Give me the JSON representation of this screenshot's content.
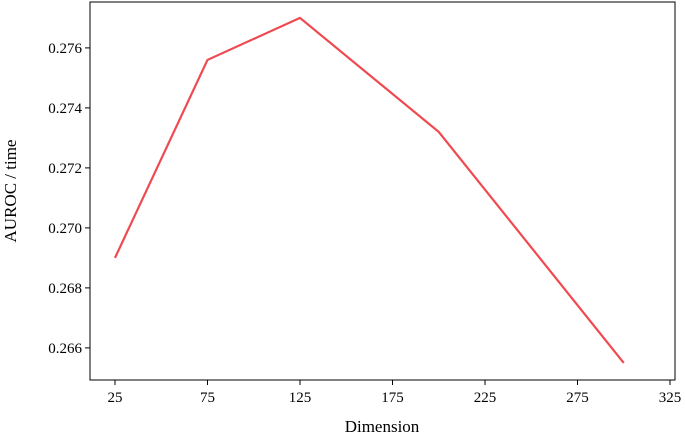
{
  "chart_data": {
    "type": "line",
    "xlabel": "Dimension",
    "ylabel": "AUROC  / time",
    "x": [
      25,
      75,
      125,
      200,
      300
    ],
    "series": [
      {
        "color": "#ef4a50",
        "values": [
          0.269,
          0.2756,
          0.277,
          0.2732,
          0.2655
        ]
      }
    ],
    "xlim": [
      11.5,
      327.7
    ],
    "xticks": [
      25,
      75,
      125,
      175,
      225,
      275,
      325
    ],
    "ylim": [
      0.26493,
      0.27753
    ],
    "yticks": [
      0.266,
      0.268,
      {
        "value": 0.27,
        "label": "0.270"
      },
      0.272,
      0.274,
      0.276
    ],
    "grid": false
  }
}
